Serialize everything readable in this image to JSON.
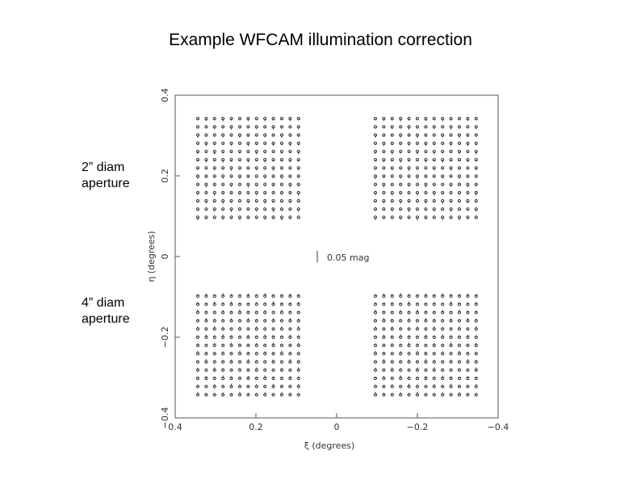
{
  "title": "Example WFCAM illumination correction",
  "side_labels": [
    "2” diam aperture",
    "4” diam aperture"
  ],
  "chart_data": {
    "type": "vector",
    "x_label": "ξ  (degrees)",
    "y_label": "η  (degrees)",
    "annotation": "0.05 mag",
    "xlim": [
      0.4,
      -0.4
    ],
    "ylim": [
      -0.4,
      0.4
    ],
    "xticks": [
      0.4,
      0.2,
      0,
      {
        "value": -0.2,
        "label": "−0.2"
      },
      {
        "value": -0.4,
        "label": "−0.4"
      }
    ],
    "yticks": [
      {
        "value": -0.4,
        "label": "−0.4"
      },
      {
        "value": -0.2,
        "label": "−0.2"
      },
      0,
      0.2,
      0.4
    ],
    "color": "#333333"
  }
}
